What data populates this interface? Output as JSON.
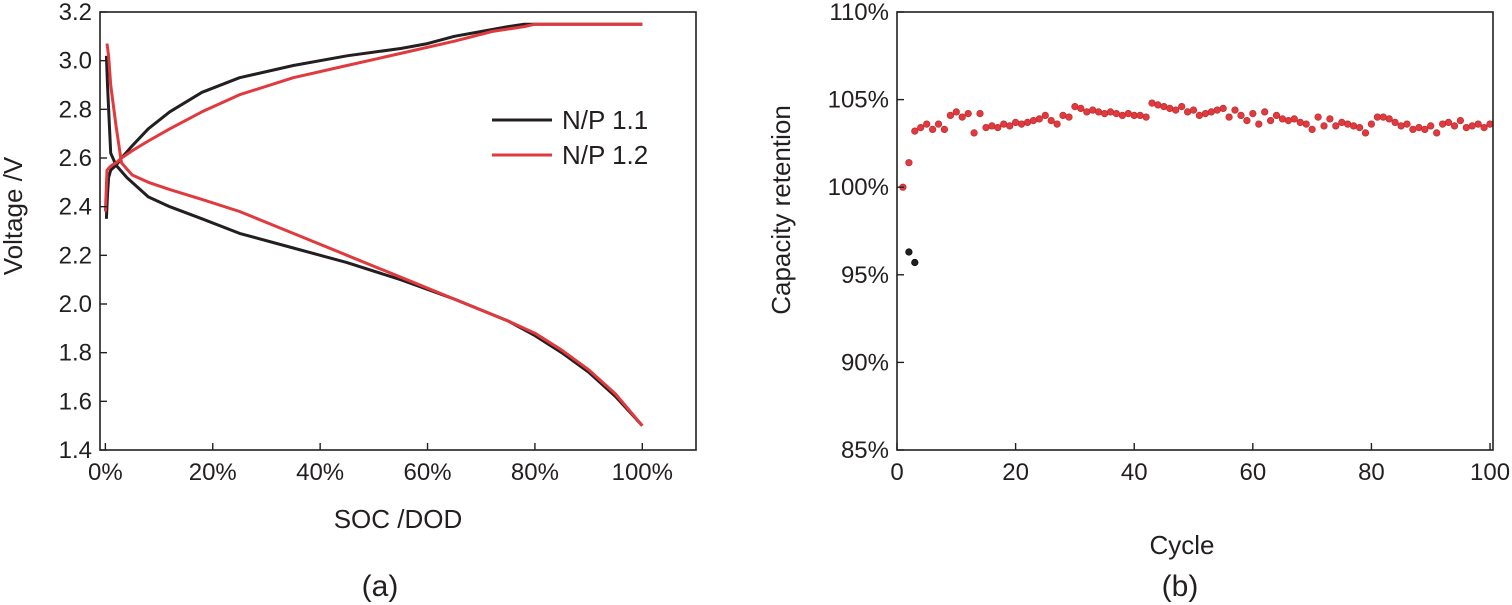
{
  "chart_data": [
    {
      "type": "line",
      "panel_label": "(a)",
      "xlabel": "SOC /DOD",
      "ylabel": "Voltage /V",
      "xlim": [
        -1,
        110
      ],
      "ylim": [
        1.4,
        3.2
      ],
      "xticks": [
        0,
        20,
        40,
        60,
        80,
        100
      ],
      "xtick_labels": [
        "0%",
        "20%",
        "40%",
        "60%",
        "80%",
        "100%"
      ],
      "yticks": [
        1.4,
        1.6,
        1.8,
        2.0,
        2.2,
        2.4,
        2.6,
        2.8,
        3.0,
        3.2
      ],
      "ytick_labels": [
        "1.4",
        "1.6",
        "1.8",
        "2.0",
        "2.2",
        "2.4",
        "2.6",
        "2.8",
        "3.0",
        "3.2"
      ],
      "legend_position": "right",
      "series": [
        {
          "name": "N/P 1.1",
          "color": "#231f20",
          "role": "charge",
          "x": [
            0.2,
            0.4,
            0.6,
            1,
            2,
            3,
            5,
            8,
            12,
            18,
            25,
            35,
            45,
            55,
            60,
            65,
            70,
            75,
            78,
            80,
            100
          ],
          "y": [
            2.35,
            2.45,
            2.52,
            2.55,
            2.57,
            2.6,
            2.65,
            2.72,
            2.79,
            2.87,
            2.93,
            2.98,
            3.02,
            3.05,
            3.07,
            3.1,
            3.12,
            3.14,
            3.15,
            3.15,
            3.15
          ]
        },
        {
          "name": "N/P 1.1",
          "color": "#231f20",
          "role": "discharge",
          "x": [
            0.2,
            0.4,
            1,
            2,
            4,
            6,
            8,
            12,
            18,
            25,
            35,
            45,
            55,
            65,
            75,
            80,
            85,
            90,
            95,
            100
          ],
          "y": [
            3.02,
            2.9,
            2.62,
            2.57,
            2.52,
            2.48,
            2.44,
            2.4,
            2.35,
            2.29,
            2.23,
            2.17,
            2.1,
            2.02,
            1.93,
            1.87,
            1.8,
            1.72,
            1.62,
            1.5
          ]
        },
        {
          "name": "N/P 1.2",
          "color": "#e03a3e",
          "role": "charge",
          "x": [
            0,
            0.3,
            0.7,
            1.2,
            2,
            3,
            5,
            8,
            12,
            18,
            25,
            35,
            45,
            55,
            65,
            72,
            78,
            80,
            100
          ],
          "y": [
            2.38,
            2.55,
            2.56,
            2.57,
            2.58,
            2.6,
            2.63,
            2.67,
            2.72,
            2.79,
            2.86,
            2.93,
            2.98,
            3.03,
            3.08,
            3.12,
            3.14,
            3.15,
            3.15
          ]
        },
        {
          "name": "N/P 1.2",
          "color": "#e03a3e",
          "role": "discharge",
          "x": [
            0.3,
            0.6,
            1,
            2,
            3,
            5,
            8,
            12,
            18,
            25,
            35,
            45,
            55,
            65,
            75,
            80,
            85,
            90,
            95,
            100
          ],
          "y": [
            3.07,
            3.02,
            2.9,
            2.73,
            2.58,
            2.53,
            2.5,
            2.47,
            2.43,
            2.38,
            2.29,
            2.2,
            2.11,
            2.02,
            1.93,
            1.88,
            1.81,
            1.73,
            1.63,
            1.5
          ]
        }
      ]
    },
    {
      "type": "scatter",
      "panel_label": "(b)",
      "xlabel": "Cycle",
      "ylabel": "Capacity retention",
      "xlim": [
        0,
        100.5
      ],
      "ylim": [
        85,
        110
      ],
      "xticks": [
        0,
        20,
        40,
        60,
        80,
        100
      ],
      "xtick_labels": [
        "0",
        "20",
        "40",
        "60",
        "80",
        "100"
      ],
      "yticks": [
        85,
        90,
        95,
        100,
        105,
        110
      ],
      "ytick_labels": [
        "85%",
        "90%",
        "95%",
        "100%",
        "105%",
        "110%"
      ],
      "series": [
        {
          "name": "dark points",
          "color": "#231f20",
          "x": [
            2,
            3
          ],
          "y": [
            96.3,
            95.7
          ]
        },
        {
          "name": "red points",
          "color": "#e03a3e",
          "x": [
            1,
            2,
            3,
            4,
            5,
            6,
            7,
            8,
            9,
            10,
            11,
            12,
            13,
            14,
            15,
            16,
            17,
            18,
            19,
            20,
            21,
            22,
            23,
            24,
            25,
            26,
            27,
            28,
            29,
            30,
            31,
            32,
            33,
            34,
            35,
            36,
            37,
            38,
            39,
            40,
            41,
            42,
            43,
            44,
            45,
            46,
            47,
            48,
            49,
            50,
            51,
            52,
            53,
            54,
            55,
            56,
            57,
            58,
            59,
            60,
            61,
            62,
            63,
            64,
            65,
            66,
            67,
            68,
            69,
            70,
            71,
            72,
            73,
            74,
            75,
            76,
            77,
            78,
            79,
            80,
            81,
            82,
            83,
            84,
            85,
            86,
            87,
            88,
            89,
            90,
            91,
            92,
            93,
            94,
            95,
            96,
            97,
            98,
            99,
            100
          ],
          "y": [
            100.0,
            101.4,
            103.2,
            103.4,
            103.6,
            103.3,
            103.6,
            103.3,
            104.1,
            104.3,
            104.0,
            104.2,
            103.1,
            104.2,
            103.4,
            103.5,
            103.4,
            103.6,
            103.5,
            103.7,
            103.6,
            103.7,
            103.8,
            103.9,
            104.1,
            103.8,
            103.6,
            104.1,
            104.0,
            104.6,
            104.5,
            104.3,
            104.4,
            104.3,
            104.2,
            104.3,
            104.2,
            104.1,
            104.2,
            104.1,
            104.1,
            104.0,
            104.8,
            104.7,
            104.6,
            104.5,
            104.4,
            104.6,
            104.3,
            104.4,
            104.1,
            104.2,
            104.3,
            104.4,
            104.5,
            104.0,
            104.4,
            104.1,
            103.8,
            104.2,
            103.6,
            104.3,
            103.8,
            104.1,
            103.9,
            103.8,
            103.9,
            103.7,
            103.6,
            103.3,
            104.0,
            103.5,
            103.9,
            103.5,
            103.7,
            103.6,
            103.5,
            103.4,
            103.1,
            103.6,
            104.0,
            104.0,
            103.9,
            103.7,
            103.5,
            103.6,
            103.3,
            103.4,
            103.3,
            103.5,
            103.1,
            103.6,
            103.7,
            103.5,
            103.8,
            103.4,
            103.5,
            103.6,
            103.4,
            103.6
          ]
        }
      ]
    }
  ]
}
